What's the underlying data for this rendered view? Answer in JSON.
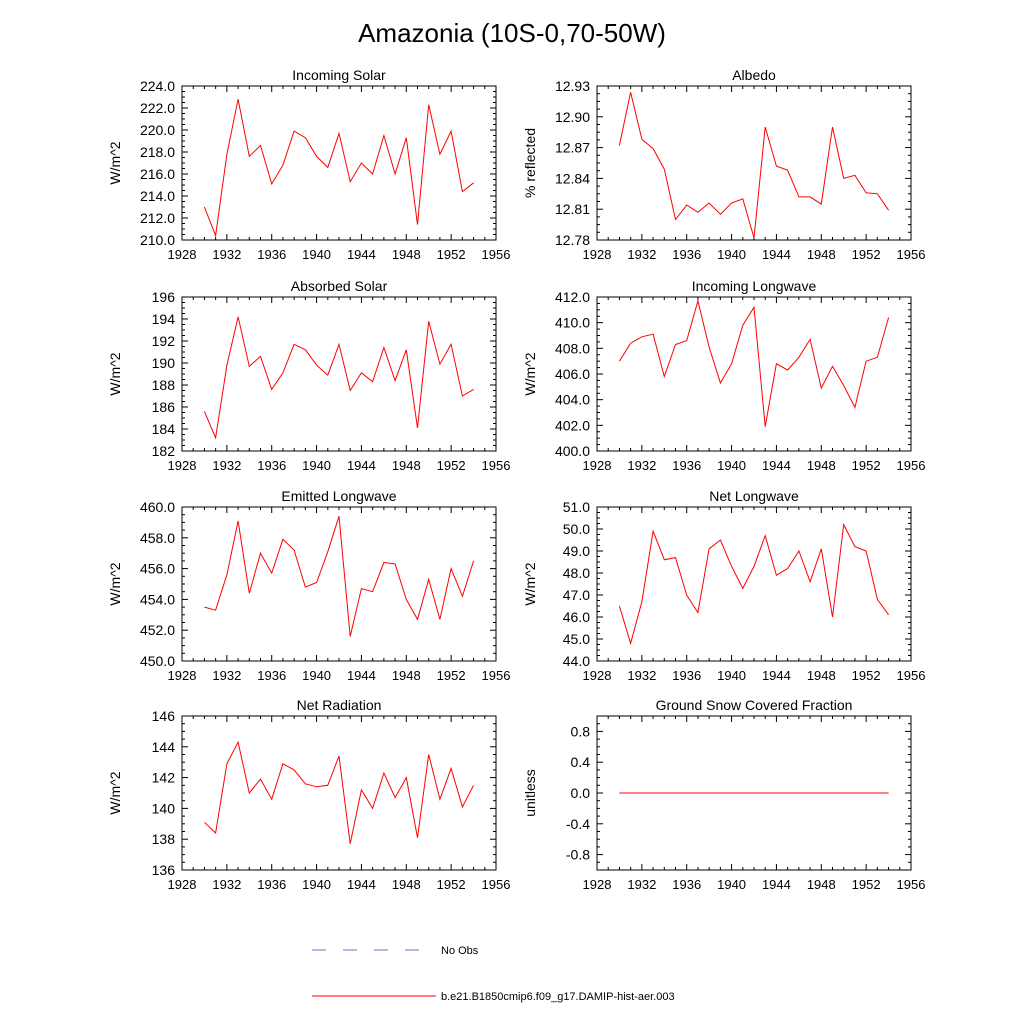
{
  "figure": {
    "title": "Amazonia (10S-0,70-50W)"
  },
  "legend": {
    "obs_label": "No Obs",
    "obs_color": "#6f6fc8",
    "model_label": "b.e21.B1850cmip6.f09_g17.DAMIP-hist-aer.003",
    "model_color": "#ff0000"
  },
  "chart_data": [
    {
      "type": "line",
      "title": "Incoming Solar",
      "ylabel": "W/m^2",
      "xlim": [
        1928,
        1956
      ],
      "xticks": [
        1928,
        1932,
        1936,
        1940,
        1944,
        1948,
        1952,
        1956
      ],
      "ylim": [
        210,
        224
      ],
      "yticks": [
        210,
        212,
        214,
        216,
        218,
        220,
        222,
        224
      ],
      "ytick_decimals": 1,
      "x": [
        1930,
        1931,
        1932,
        1933,
        1934,
        1935,
        1936,
        1937,
        1938,
        1939,
        1940,
        1941,
        1942,
        1943,
        1944,
        1945,
        1946,
        1947,
        1948,
        1949,
        1950,
        1951,
        1952,
        1953,
        1954
      ],
      "series": [
        {
          "color": "#ff0000",
          "values": [
            213.0,
            210.4,
            217.8,
            222.8,
            217.6,
            218.6,
            215.1,
            216.8,
            219.9,
            219.3,
            217.6,
            216.6,
            219.7,
            215.3,
            217.0,
            216.0,
            219.5,
            216.0,
            219.3,
            211.4,
            222.3,
            217.8,
            219.9,
            214.4,
            215.2
          ]
        }
      ]
    },
    {
      "type": "line",
      "title": "Albedo",
      "ylabel": "% reflected",
      "xlim": [
        1928,
        1956
      ],
      "xticks": [
        1928,
        1932,
        1936,
        1940,
        1944,
        1948,
        1952,
        1956
      ],
      "ylim": [
        12.78,
        12.93
      ],
      "yticks": [
        12.78,
        12.81,
        12.84,
        12.87,
        12.9,
        12.93
      ],
      "ytick_decimals": 2,
      "x": [
        1930,
        1931,
        1932,
        1933,
        1934,
        1935,
        1936,
        1937,
        1938,
        1939,
        1940,
        1941,
        1942,
        1943,
        1944,
        1945,
        1946,
        1947,
        1948,
        1949,
        1950,
        1951,
        1952,
        1953,
        1954
      ],
      "series": [
        {
          "color": "#ff0000",
          "values": [
            12.872,
            12.924,
            12.878,
            12.869,
            12.849,
            12.8,
            12.814,
            12.807,
            12.816,
            12.805,
            12.816,
            12.82,
            12.782,
            12.89,
            12.852,
            12.848,
            12.822,
            12.822,
            12.815,
            12.89,
            12.84,
            12.843,
            12.826,
            12.825,
            12.809
          ]
        }
      ]
    },
    {
      "type": "line",
      "title": "Absorbed Solar",
      "ylabel": "W/m^2",
      "xlim": [
        1928,
        1956
      ],
      "xticks": [
        1928,
        1932,
        1936,
        1940,
        1944,
        1948,
        1952,
        1956
      ],
      "ylim": [
        182,
        196
      ],
      "yticks": [
        182,
        184,
        186,
        188,
        190,
        192,
        194,
        196
      ],
      "ytick_decimals": 0,
      "x": [
        1930,
        1931,
        1932,
        1933,
        1934,
        1935,
        1936,
        1937,
        1938,
        1939,
        1940,
        1941,
        1942,
        1943,
        1944,
        1945,
        1946,
        1947,
        1948,
        1949,
        1950,
        1951,
        1952,
        1953,
        1954
      ],
      "series": [
        {
          "color": "#ff0000",
          "values": [
            185.6,
            183.2,
            189.8,
            194.2,
            189.7,
            190.6,
            187.6,
            189.1,
            191.7,
            191.2,
            189.8,
            188.9,
            191.7,
            187.5,
            189.1,
            188.3,
            191.4,
            188.4,
            191.2,
            184.1,
            193.8,
            189.9,
            191.7,
            187.0,
            187.6
          ]
        }
      ]
    },
    {
      "type": "line",
      "title": "Incoming Longwave",
      "ylabel": "W/m^2",
      "xlim": [
        1928,
        1956
      ],
      "xticks": [
        1928,
        1932,
        1936,
        1940,
        1944,
        1948,
        1952,
        1956
      ],
      "ylim": [
        400,
        412
      ],
      "yticks": [
        400,
        402,
        404,
        406,
        408,
        410,
        412
      ],
      "ytick_decimals": 1,
      "x": [
        1930,
        1931,
        1932,
        1933,
        1934,
        1935,
        1936,
        1937,
        1938,
        1939,
        1940,
        1941,
        1942,
        1943,
        1944,
        1945,
        1946,
        1947,
        1948,
        1949,
        1950,
        1951,
        1952,
        1953,
        1954
      ],
      "series": [
        {
          "color": "#ff0000",
          "values": [
            407.0,
            408.4,
            408.9,
            409.1,
            405.8,
            408.3,
            408.6,
            411.7,
            408.1,
            405.3,
            406.8,
            409.8,
            411.2,
            401.9,
            406.8,
            406.3,
            407.3,
            408.7,
            404.9,
            406.6,
            405.1,
            403.4,
            407.0,
            407.3,
            410.4
          ]
        }
      ]
    },
    {
      "type": "line",
      "title": "Emitted Longwave",
      "ylabel": "W/m^2",
      "xlim": [
        1928,
        1956
      ],
      "xticks": [
        1928,
        1932,
        1936,
        1940,
        1944,
        1948,
        1952,
        1956
      ],
      "ylim": [
        450,
        460
      ],
      "yticks": [
        450,
        452,
        454,
        456,
        458,
        460
      ],
      "ytick_decimals": 1,
      "x": [
        1930,
        1931,
        1932,
        1933,
        1934,
        1935,
        1936,
        1937,
        1938,
        1939,
        1940,
        1941,
        1942,
        1943,
        1944,
        1945,
        1946,
        1947,
        1948,
        1949,
        1950,
        1951,
        1952,
        1953,
        1954
      ],
      "series": [
        {
          "color": "#ff0000",
          "values": [
            453.5,
            453.3,
            455.6,
            459.1,
            454.4,
            457.0,
            455.7,
            457.9,
            457.2,
            454.8,
            455.1,
            457.1,
            459.4,
            451.6,
            454.7,
            454.5,
            456.4,
            456.3,
            454.0,
            452.7,
            455.3,
            452.7,
            456.0,
            454.2,
            456.5
          ]
        }
      ]
    },
    {
      "type": "line",
      "title": "Net Longwave",
      "ylabel": "W/m^2",
      "xlim": [
        1928,
        1956
      ],
      "xticks": [
        1928,
        1932,
        1936,
        1940,
        1944,
        1948,
        1952,
        1956
      ],
      "ylim": [
        44,
        51
      ],
      "yticks": [
        44,
        45,
        46,
        47,
        48,
        49,
        50,
        51
      ],
      "ytick_decimals": 1,
      "x": [
        1930,
        1931,
        1932,
        1933,
        1934,
        1935,
        1936,
        1937,
        1938,
        1939,
        1940,
        1941,
        1942,
        1943,
        1944,
        1945,
        1946,
        1947,
        1948,
        1949,
        1950,
        1951,
        1952,
        1953,
        1954
      ],
      "series": [
        {
          "color": "#ff0000",
          "values": [
            46.5,
            44.8,
            46.7,
            49.9,
            48.6,
            48.7,
            47.0,
            46.2,
            49.1,
            49.5,
            48.3,
            47.3,
            48.3,
            49.7,
            47.9,
            48.2,
            49.0,
            47.6,
            49.1,
            46.0,
            50.2,
            49.2,
            49.0,
            46.8,
            46.1
          ]
        }
      ]
    },
    {
      "type": "line",
      "title": "Net Radiation",
      "ylabel": "W/m^2",
      "xlim": [
        1928,
        1956
      ],
      "xticks": [
        1928,
        1932,
        1936,
        1940,
        1944,
        1948,
        1952,
        1956
      ],
      "ylim": [
        136,
        146
      ],
      "yticks": [
        136,
        138,
        140,
        142,
        144,
        146
      ],
      "ytick_decimals": 0,
      "x": [
        1930,
        1931,
        1932,
        1933,
        1934,
        1935,
        1936,
        1937,
        1938,
        1939,
        1940,
        1941,
        1942,
        1943,
        1944,
        1945,
        1946,
        1947,
        1948,
        1949,
        1950,
        1951,
        1952,
        1953,
        1954
      ],
      "series": [
        {
          "color": "#ff0000",
          "values": [
            139.1,
            138.4,
            142.9,
            144.3,
            141.0,
            141.9,
            140.6,
            142.9,
            142.5,
            141.6,
            141.4,
            141.5,
            143.4,
            137.7,
            141.2,
            140.0,
            142.3,
            140.7,
            142.0,
            138.1,
            143.5,
            140.6,
            142.6,
            140.1,
            141.5
          ]
        }
      ]
    },
    {
      "type": "line",
      "title": "Ground Snow Covered Fraction",
      "ylabel": "unitless",
      "xlim": [
        1928,
        1956
      ],
      "xticks": [
        1928,
        1932,
        1936,
        1940,
        1944,
        1948,
        1952,
        1956
      ],
      "ylim": [
        -1.0,
        1.0
      ],
      "yticks": [
        -0.8,
        -0.4,
        0.0,
        0.4,
        0.8
      ],
      "ytick_decimals": 1,
      "x": [
        1930,
        1931,
        1932,
        1933,
        1934,
        1935,
        1936,
        1937,
        1938,
        1939,
        1940,
        1941,
        1942,
        1943,
        1944,
        1945,
        1946,
        1947,
        1948,
        1949,
        1950,
        1951,
        1952,
        1953,
        1954
      ],
      "series": [
        {
          "color": "#ff0000",
          "values": [
            0,
            0,
            0,
            0,
            0,
            0,
            0,
            0,
            0,
            0,
            0,
            0,
            0,
            0,
            0,
            0,
            0,
            0,
            0,
            0,
            0,
            0,
            0,
            0,
            0
          ]
        }
      ]
    }
  ]
}
